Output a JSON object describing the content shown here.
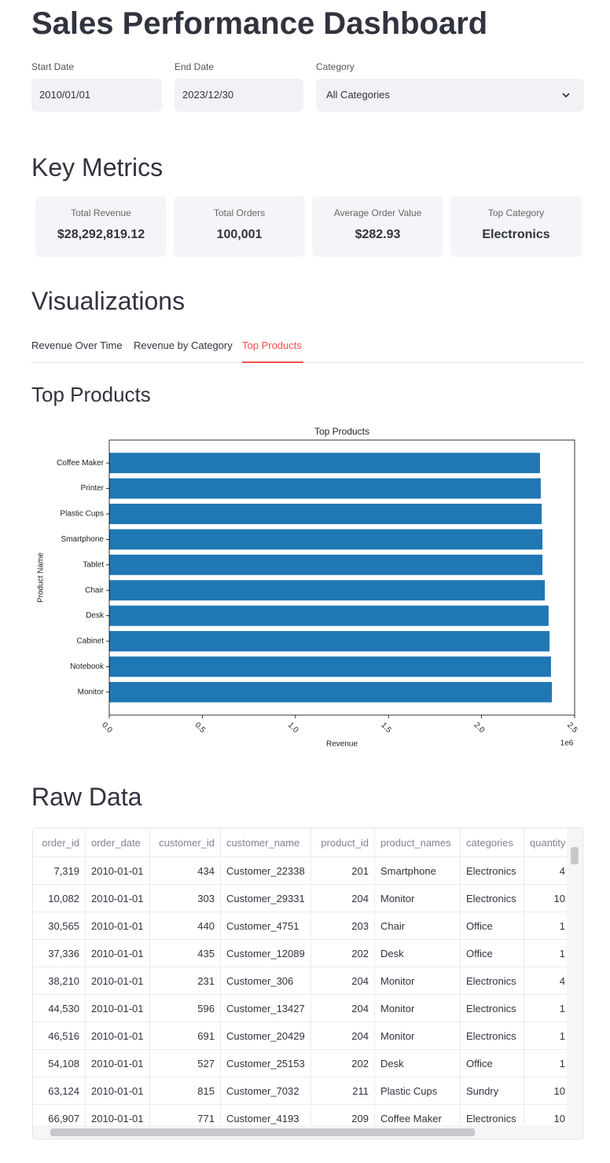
{
  "header": {
    "title": "Sales Performance Dashboard"
  },
  "filters": [
    {
      "label": "Start Date",
      "value": "2010/01/01"
    },
    {
      "label": "End Date",
      "value": "2023/12/30"
    },
    {
      "label": "Category",
      "value": "All Categories"
    }
  ],
  "metrics": {
    "title": "Key Metrics",
    "cards": [
      {
        "label": "Total Revenue",
        "value": "$28,292,819.12"
      },
      {
        "label": "Total Orders",
        "value": "100,001"
      },
      {
        "label": "Average Order Value",
        "value": "$282.93"
      },
      {
        "label": "Top Category",
        "value": "Electronics"
      }
    ]
  },
  "visualizations": {
    "title": "Visualizations",
    "tabs": [
      "Revenue Over Time",
      "Revenue by Category",
      "Top Products"
    ],
    "subtitle": "Top Products"
  },
  "chart_data": {
    "type": "barh",
    "title": "Top Products",
    "xlabel": "Revenue",
    "ylabel": "Product Name",
    "x_offset_label": "1e6",
    "categories": [
      "Coffee Maker",
      "Printer",
      "Plastic Cups",
      "Smartphone",
      "Tablet",
      "Chair",
      "Desk",
      "Cabinet",
      "Notebook",
      "Monitor"
    ],
    "values": [
      2.314,
      2.318,
      2.323,
      2.327,
      2.327,
      2.34,
      2.36,
      2.365,
      2.373,
      2.378
    ],
    "color": "#1f77b4",
    "xlim": [
      0,
      2.5
    ],
    "xticks": [
      {
        "value": 0,
        "label": "0.0"
      },
      0.5,
      {
        "value": 1,
        "label": "1.0"
      },
      1.5,
      {
        "value": 2,
        "label": "2.0"
      },
      2.5
    ],
    "grid": false
  },
  "raw_data": {
    "title": "Raw Data",
    "columns": [
      "order_id",
      "order_date",
      "customer_id",
      "customer_name",
      "product_id",
      "product_names",
      "categories",
      "quantity"
    ],
    "rows": [
      [
        "7,319",
        "2010-01-01",
        "434",
        "Customer_22338",
        "201",
        "Smartphone",
        "Electronics",
        "4"
      ],
      [
        "10,082",
        "2010-01-01",
        "303",
        "Customer_29331",
        "204",
        "Monitor",
        "Electronics",
        "10"
      ],
      [
        "30,565",
        "2010-01-01",
        "440",
        "Customer_4751",
        "203",
        "Chair",
        "Office",
        "1"
      ],
      [
        "37,336",
        "2010-01-01",
        "435",
        "Customer_12089",
        "202",
        "Desk",
        "Office",
        "1"
      ],
      [
        "38,210",
        "2010-01-01",
        "231",
        "Customer_306",
        "204",
        "Monitor",
        "Electronics",
        "4"
      ],
      [
        "44,530",
        "2010-01-01",
        "596",
        "Customer_13427",
        "204",
        "Monitor",
        "Electronics",
        "1"
      ],
      [
        "46,516",
        "2010-01-01",
        "691",
        "Customer_20429",
        "204",
        "Monitor",
        "Electronics",
        "1"
      ],
      [
        "54,108",
        "2010-01-01",
        "527",
        "Customer_25153",
        "202",
        "Desk",
        "Office",
        "1"
      ],
      [
        "63,124",
        "2010-01-01",
        "815",
        "Customer_7032",
        "211",
        "Plastic Cups",
        "Sundry",
        "10"
      ],
      [
        "66,907",
        "2010-01-01",
        "771",
        "Customer_4193",
        "209",
        "Coffee Maker",
        "Electronics",
        "10"
      ]
    ]
  }
}
